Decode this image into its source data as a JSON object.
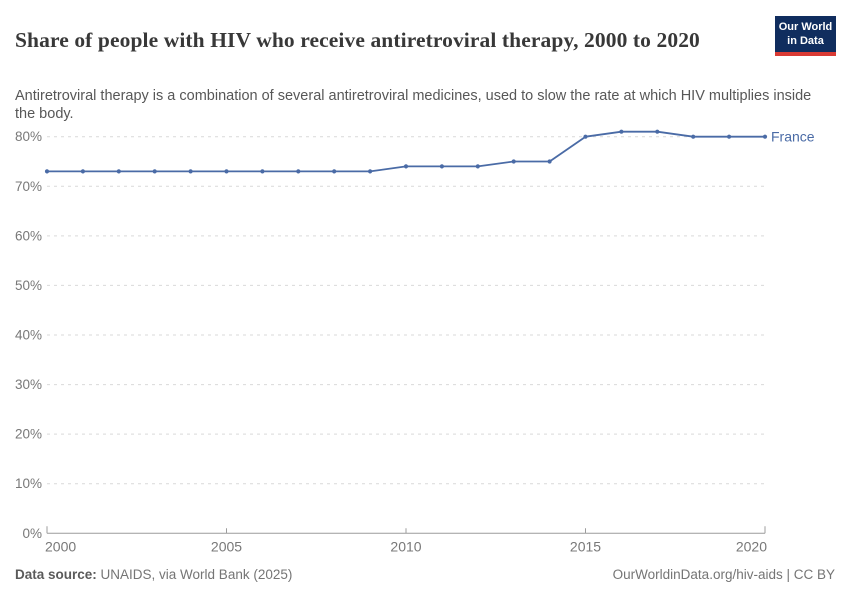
{
  "header": {
    "title": "Share of people with HIV who receive antiretroviral therapy, 2000 to 2020",
    "subtitle": "Antiretroviral therapy is a combination of several antiretroviral medicines, used to slow the rate at which HIV multiplies inside the body."
  },
  "logo": {
    "line1": "Our World",
    "line2": "in Data"
  },
  "chart_data": {
    "type": "line",
    "title": "Share of people with HIV who receive antiretroviral therapy, 2000 to 2020",
    "xlabel": "",
    "ylabel": "",
    "xlim": [
      2000,
      2020
    ],
    "ylim": [
      0,
      80
    ],
    "grid": "dashed-horizontal",
    "legend": "end-of-line-label",
    "x": [
      2000,
      2001,
      2002,
      2003,
      2004,
      2005,
      2006,
      2007,
      2008,
      2009,
      2010,
      2011,
      2012,
      2013,
      2014,
      2015,
      2016,
      2017,
      2018,
      2019,
      2020
    ],
    "series": [
      {
        "name": "France",
        "color": "#4a6ba6",
        "values": [
          73,
          73,
          73,
          73,
          73,
          73,
          73,
          73,
          73,
          73,
          74,
          74,
          74,
          75,
          75,
          80,
          81,
          81,
          80,
          80,
          80
        ]
      }
    ],
    "yticks": [
      {
        "value": 0,
        "label": "0%"
      },
      {
        "value": 10,
        "label": "10%"
      },
      {
        "value": 20,
        "label": "20%"
      },
      {
        "value": 30,
        "label": "30%"
      },
      {
        "value": 40,
        "label": "40%"
      },
      {
        "value": 50,
        "label": "50%"
      },
      {
        "value": 60,
        "label": "60%"
      },
      {
        "value": 70,
        "label": "70%"
      },
      {
        "value": 80,
        "label": "80%"
      }
    ],
    "xticks": [
      {
        "value": 2000,
        "label": "2000"
      },
      {
        "value": 2005,
        "label": "2005"
      },
      {
        "value": 2010,
        "label": "2010"
      },
      {
        "value": 2015,
        "label": "2015"
      },
      {
        "value": 2020,
        "label": "2020"
      }
    ]
  },
  "colors": {
    "line": "#4a6ba6",
    "grid": "#d9d9d9",
    "axis": "#9c9c9c",
    "tick": "#787878",
    "title": "#383838",
    "subtitle": "#575757",
    "logo_bg": "#102d5e",
    "logo_red": "#d93a34"
  },
  "footer": {
    "source_label": "Data source:",
    "source_text": " UNAIDS, via World Bank (2025)",
    "right_text": "OurWorldinData.org/hiv-aids | CC BY"
  }
}
